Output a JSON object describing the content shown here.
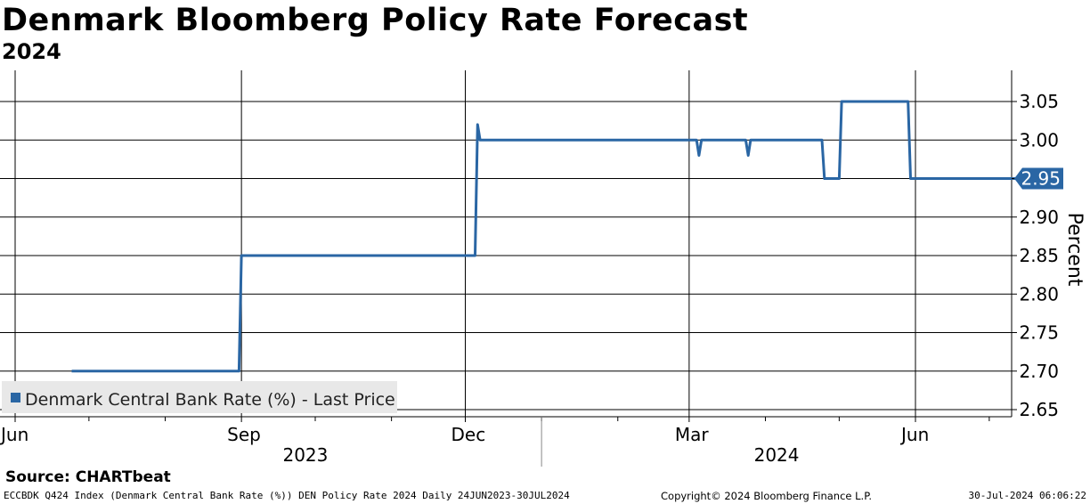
{
  "header": {
    "title": "Denmark Bloomberg Policy Rate Forecast",
    "subtitle": "2024"
  },
  "source": "Source:  CHARTbeat",
  "footer": {
    "left": "ECCBDK Q424 Index (Denmark Central Bank Rate (%)) DEN Policy Rate 2024  Daily 24JUN2023-30JUL2024",
    "copyright": "Copyright© 2024 Bloomberg Finance L.P.",
    "timestamp": "30-Jul-2024 06:06:22"
  },
  "colors": {
    "series": "#2a66a4",
    "gridline": "#000000",
    "legend_bg": "#e8e8e8",
    "last_value_bg": "#2a66a4",
    "last_value_text": "#ffffff"
  },
  "chart_data": {
    "type": "line",
    "title": "Denmark Bloomberg Policy Rate Forecast",
    "subtitle": "2024",
    "xlabel": "",
    "ylabel": "Percent",
    "y_axis_side": "right",
    "ylim": [
      2.64,
      3.08
    ],
    "yticks": [
      "2.65",
      "2.70",
      "2.75",
      "2.80",
      "2.85",
      "2.90",
      "2.95",
      "3.00",
      "3.05"
    ],
    "xlim": [
      "2023-06-24",
      "2024-07-30"
    ],
    "x_month_labels": [
      {
        "date": "2023-06-01",
        "label": "Jun"
      },
      {
        "date": "2023-09-01",
        "label": "Sep"
      },
      {
        "date": "2023-12-01",
        "label": "Dec"
      },
      {
        "date": "2024-03-01",
        "label": "Mar"
      },
      {
        "date": "2024-06-01",
        "label": "Jun"
      }
    ],
    "x_minor_months": [
      "2023-07-01",
      "2023-08-01",
      "2023-10-01",
      "2023-11-01",
      "2024-01-01",
      "2024-02-01",
      "2024-04-01",
      "2024-05-01",
      "2024-07-01"
    ],
    "x_year_labels": [
      {
        "label": "2023",
        "from": "2023-06-24",
        "to": "2023-12-31"
      },
      {
        "label": "2024",
        "from": "2024-01-01",
        "to": "2024-07-30"
      }
    ],
    "grid": true,
    "legend_position": "bottom-left",
    "series": [
      {
        "name": "Denmark Central Bank Rate (%) - Last Price",
        "last_value": "2.95",
        "x": [
          "2023-06-24",
          "2023-08-31",
          "2023-09-01",
          "2023-12-05",
          "2023-12-06",
          "2023-12-07",
          "2024-03-04",
          "2024-03-05",
          "2024-03-06",
          "2024-03-24",
          "2024-03-25",
          "2024-03-26",
          "2024-04-24",
          "2024-04-25",
          "2024-05-01",
          "2024-05-02",
          "2024-05-29",
          "2024-05-30",
          "2024-07-30"
        ],
        "values": [
          2.7,
          2.7,
          2.85,
          2.85,
          3.02,
          3.0,
          3.0,
          2.98,
          3.0,
          3.0,
          2.98,
          3.0,
          3.0,
          2.95,
          2.95,
          3.05,
          3.05,
          2.95,
          2.95
        ]
      }
    ]
  }
}
